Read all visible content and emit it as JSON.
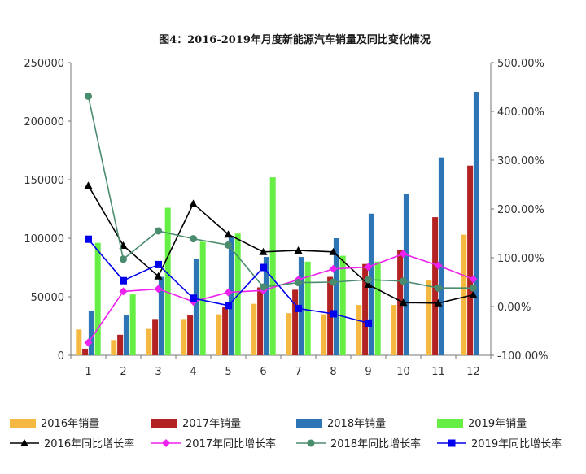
{
  "chart_data": {
    "type": "bar",
    "title": "图4：2016-2019年月度新能源汽车销量及同比变化情况",
    "categories": [
      "1",
      "2",
      "3",
      "4",
      "5",
      "6",
      "7",
      "8",
      "9",
      "10",
      "11",
      "12"
    ],
    "y_left": {
      "min": 0,
      "max": 250000,
      "ticks": [
        "0",
        "50000",
        "100000",
        "150000",
        "200000",
        "250000"
      ]
    },
    "y_right": {
      "min": -100,
      "max": 500,
      "ticks": [
        "-100.00%",
        "0.00%",
        "100.00%",
        "200.00%",
        "300.00%",
        "400.00%",
        "500.00%"
      ]
    },
    "bar_series": [
      {
        "name": "2016年销量",
        "color": "#f5b942",
        "values": [
          22000,
          13000,
          22500,
          31000,
          35000,
          44000,
          36000,
          35000,
          43000,
          43000,
          64000,
          103000
        ]
      },
      {
        "name": "2017年销量",
        "color": "#b22222",
        "values": [
          5600,
          17500,
          31000,
          34000,
          41000,
          58000,
          56000,
          67000,
          78000,
          90000,
          118000,
          162000
        ]
      },
      {
        "name": "2018年销量",
        "color": "#2e75b6",
        "values": [
          38000,
          34000,
          67000,
          82000,
          102000,
          84000,
          84000,
          100000,
          121000,
          138000,
          169000,
          225000
        ]
      },
      {
        "name": "2019年销量",
        "color": "#66ee44",
        "values": [
          96000,
          52000,
          126000,
          97000,
          104000,
          152000,
          80000,
          85000,
          80000,
          null,
          null,
          null
        ]
      }
    ],
    "line_series": [
      {
        "name": "2016年同比增长率",
        "color": "#000000",
        "marker": "triangle",
        "values": [
          248,
          125,
          62,
          211,
          148,
          112,
          115,
          112,
          45,
          8,
          7,
          24
        ]
      },
      {
        "name": "2017年同比增长率",
        "color": "#ee22ee",
        "marker": "diamond",
        "values": [
          -74,
          31,
          36,
          10,
          29,
          33,
          55,
          77,
          81,
          108,
          84,
          56
        ]
      },
      {
        "name": "2018年同比增长率",
        "color": "#4a8c6e",
        "marker": "circle",
        "values": [
          431,
          97,
          155,
          139,
          126,
          40,
          49,
          50,
          55,
          52,
          38,
          38
        ]
      },
      {
        "name": "2019年同比增长率",
        "color": "#0000ee",
        "marker": "square",
        "values": [
          138,
          53,
          86,
          17,
          2,
          80,
          -4,
          -15,
          -34,
          null,
          null,
          null
        ]
      }
    ],
    "legend_position": "bottom",
    "grid": false
  }
}
